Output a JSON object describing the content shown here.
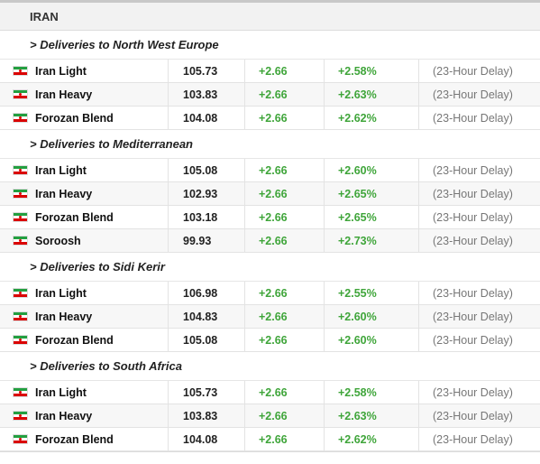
{
  "header": {
    "title": "IRAN"
  },
  "delay_label": "(23-Hour Delay)",
  "sections": [
    {
      "title": "> Deliveries to North West Europe",
      "rows": [
        {
          "name": "Iran Light",
          "price": "105.73",
          "change": "+2.66",
          "pct": "+2.58%"
        },
        {
          "name": "Iran Heavy",
          "price": "103.83",
          "change": "+2.66",
          "pct": "+2.63%"
        },
        {
          "name": "Forozan Blend",
          "price": "104.08",
          "change": "+2.66",
          "pct": "+2.62%"
        }
      ]
    },
    {
      "title": "> Deliveries to Mediterranean",
      "rows": [
        {
          "name": "Iran Light",
          "price": "105.08",
          "change": "+2.66",
          "pct": "+2.60%"
        },
        {
          "name": "Iran Heavy",
          "price": "102.93",
          "change": "+2.66",
          "pct": "+2.65%"
        },
        {
          "name": "Forozan Blend",
          "price": "103.18",
          "change": "+2.66",
          "pct": "+2.65%"
        },
        {
          "name": "Soroosh",
          "price": "99.93",
          "change": "+2.66",
          "pct": "+2.73%"
        }
      ]
    },
    {
      "title": "> Deliveries to Sidi Kerir",
      "rows": [
        {
          "name": "Iran Light",
          "price": "106.98",
          "change": "+2.66",
          "pct": "+2.55%"
        },
        {
          "name": "Iran Heavy",
          "price": "104.83",
          "change": "+2.66",
          "pct": "+2.60%"
        },
        {
          "name": "Forozan Blend",
          "price": "105.08",
          "change": "+2.66",
          "pct": "+2.60%"
        }
      ]
    },
    {
      "title": "> Deliveries to South Africa",
      "rows": [
        {
          "name": "Iran Light",
          "price": "105.73",
          "change": "+2.66",
          "pct": "+2.58%"
        },
        {
          "name": "Iran Heavy",
          "price": "103.83",
          "change": "+2.66",
          "pct": "+2.63%"
        },
        {
          "name": "Forozan Blend",
          "price": "104.08",
          "change": "+2.66",
          "pct": "+2.62%"
        }
      ]
    }
  ],
  "flag": {
    "icon": "iran-flag-icon",
    "colors": {
      "green": "#239f40",
      "white": "#ffffff",
      "red": "#da0000"
    }
  },
  "colors": {
    "positive": "#3fa53a",
    "delay": "#777777"
  }
}
